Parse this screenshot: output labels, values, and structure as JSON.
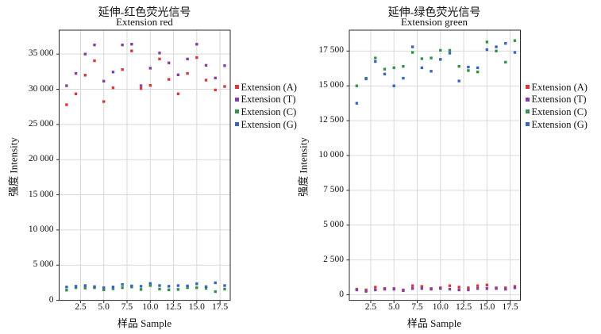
{
  "page": {
    "background": "#ffffff",
    "grid_color": "#d9d9d9",
    "spine_color": "#2b2b2b",
    "text_color": "#111111"
  },
  "chart_data": [
    {
      "type": "scatter",
      "title_zh": "延伸-红色荧光信号",
      "title_en": "Extension red",
      "xlabel": "样品 Sample",
      "ylabel": "强度 Intensity",
      "x_tick_labels": [
        "2.5",
        "5.0",
        "7.5",
        "10.0",
        "12.5",
        "15.0",
        "17.5"
      ],
      "x_tick_values": [
        2.5,
        5,
        7.5,
        10,
        12.5,
        15,
        17.5
      ],
      "y_tick_labels": [
        "0",
        "5 000",
        "10 000",
        "15 000",
        "20 000",
        "25 000",
        "30 000",
        "35 000"
      ],
      "y_tick_values": [
        0,
        5000,
        10000,
        15000,
        20000,
        25000,
        30000,
        35000
      ],
      "axis": {
        "x_min": 0.2,
        "x_max": 18.6,
        "y_min": 0,
        "y_max": 38400,
        "grid": true
      },
      "x": [
        1,
        2,
        3,
        4,
        5,
        6,
        7,
        8,
        9,
        10,
        11,
        12,
        13,
        14,
        15,
        16,
        17,
        18
      ],
      "legend_position": "right-middle",
      "series": [
        {
          "name": "Extension (A)",
          "color": "#d8393c",
          "values": [
            27800,
            29350,
            32000,
            34050,
            28250,
            30200,
            32800,
            35450,
            30100,
            30550,
            34300,
            31400,
            29350,
            32250,
            34500,
            31300,
            29900,
            30400
          ]
        },
        {
          "name": "Extension (T)",
          "color": "#8440a5",
          "values": [
            30500,
            32250,
            35000,
            36300,
            31150,
            32450,
            36300,
            36400,
            30500,
            33000,
            35150,
            33750,
            32050,
            34300,
            36400,
            33400,
            31600,
            33350
          ]
        },
        {
          "name": "Extension (C)",
          "color": "#35924b",
          "values": [
            1450,
            1800,
            1750,
            1800,
            1500,
            1650,
            1800,
            1900,
            1550,
            2100,
            1600,
            1500,
            1550,
            1800,
            1800,
            1700,
            1250,
            1600
          ]
        },
        {
          "name": "Extension (G)",
          "color": "#3b64c0",
          "values": [
            1900,
            2000,
            2100,
            1950,
            1800,
            1900,
            2250,
            2050,
            2000,
            2400,
            2100,
            2000,
            2100,
            2050,
            2350,
            1950,
            2500,
            2100
          ]
        }
      ]
    },
    {
      "type": "scatter",
      "title_zh": "延伸-绿色荧光信号",
      "title_en": "Extension green",
      "xlabel": "样品 Sample",
      "ylabel": "强度 Intensity",
      "x_tick_labels": [
        "2.5",
        "5.0",
        "7.5",
        "10.0",
        "12.5",
        "15.0",
        "17.5"
      ],
      "x_tick_values": [
        2.5,
        5,
        7.5,
        10,
        12.5,
        15,
        17.5
      ],
      "y_tick_labels": [
        "0",
        "2 500",
        "5 000",
        "7 500",
        "10 000",
        "12 500",
        "15 000",
        "17 500"
      ],
      "y_tick_values": [
        0,
        2500,
        5000,
        7500,
        10000,
        12500,
        15000,
        17500
      ],
      "axis": {
        "x_min": 0.2,
        "x_max": 18.6,
        "y_min": -400,
        "y_max": 19000,
        "grid": true
      },
      "x": [
        1,
        2,
        3,
        4,
        5,
        6,
        7,
        8,
        9,
        10,
        11,
        12,
        13,
        14,
        15,
        16,
        17,
        18
      ],
      "legend_position": "right-middle",
      "series": [
        {
          "name": "Extension (A)",
          "color": "#d8393c",
          "values": [
            400,
            350,
            550,
            450,
            450,
            350,
            650,
            600,
            450,
            500,
            650,
            550,
            500,
            650,
            700,
            500,
            500,
            600
          ]
        },
        {
          "name": "Extension (T)",
          "color": "#8440a5",
          "values": [
            350,
            250,
            350,
            400,
            400,
            300,
            450,
            450,
            400,
            450,
            400,
            350,
            350,
            450,
            450,
            450,
            400,
            500
          ]
        },
        {
          "name": "Extension (C)",
          "color": "#35924b",
          "values": [
            15000,
            15550,
            17000,
            16200,
            16300,
            16400,
            17400,
            16950,
            17000,
            17550,
            17550,
            16400,
            16100,
            16000,
            18150,
            17500,
            16700,
            18250
          ]
        },
        {
          "name": "Extension (G)",
          "color": "#3b64c0",
          "values": [
            13750,
            15500,
            16750,
            15850,
            15000,
            15550,
            17800,
            16300,
            16050,
            16900,
            17350,
            15350,
            16350,
            16300,
            17600,
            17800,
            18050,
            17400
          ]
        }
      ]
    }
  ]
}
